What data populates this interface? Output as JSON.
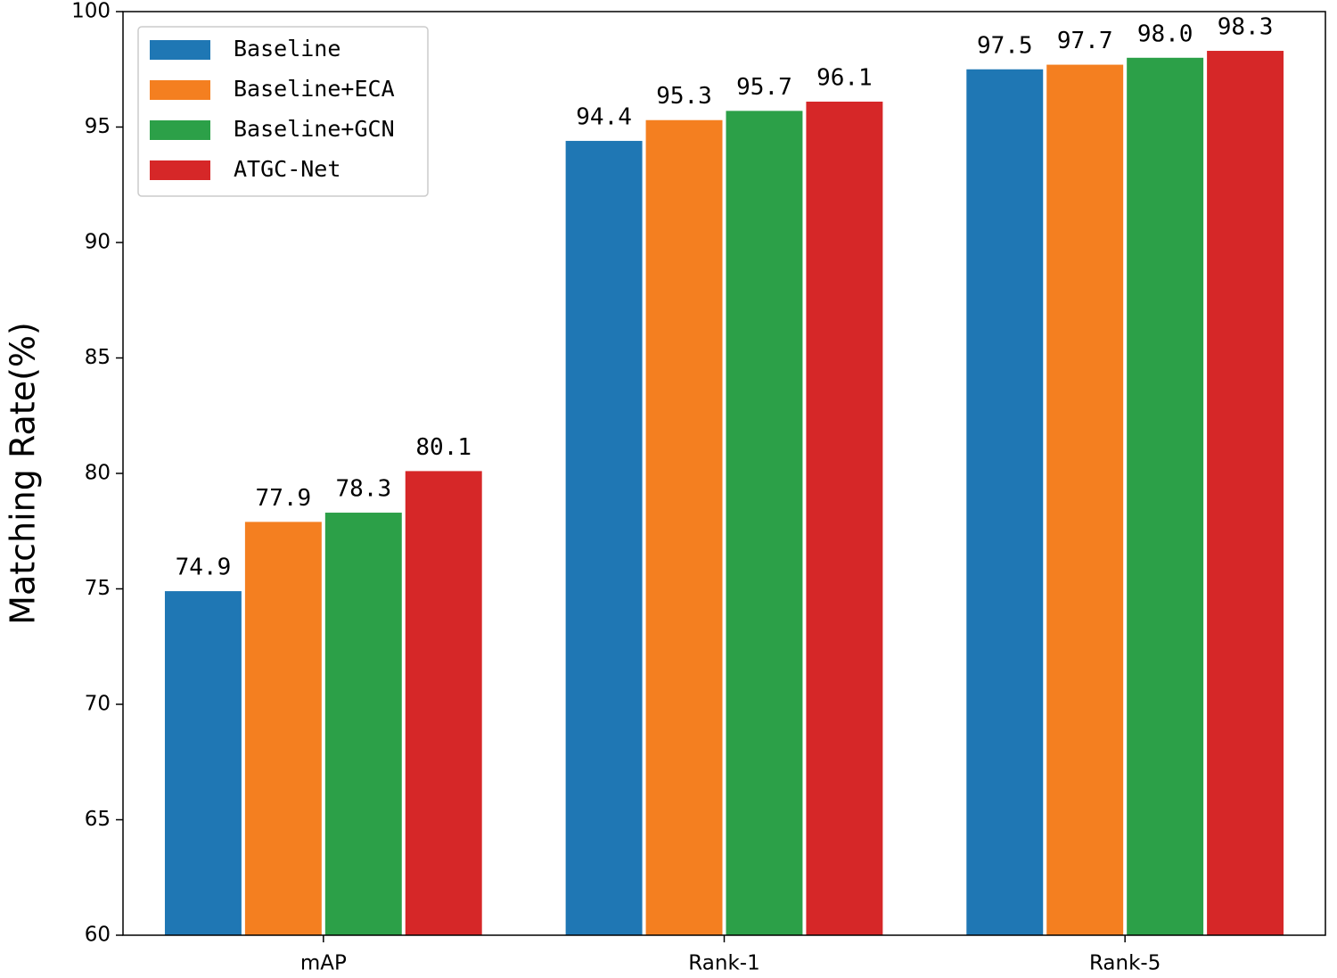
{
  "chart_data": {
    "type": "bar",
    "ylabel": "Matching Rate(%)",
    "categories": [
      "mAP",
      "Rank-1",
      "Rank-5"
    ],
    "series": [
      {
        "name": "Baseline",
        "color": "#1f77b4",
        "values": [
          74.9,
          94.4,
          97.5
        ]
      },
      {
        "name": "Baseline+ECA",
        "color": "#f47f20",
        "values": [
          77.9,
          95.3,
          97.7
        ]
      },
      {
        "name": "Baseline+GCN",
        "color": "#2ca048",
        "values": [
          78.3,
          95.7,
          98
        ],
        "value_labels": [
          "78.3",
          "95.7",
          "98.0"
        ]
      },
      {
        "name": "ATGC-Net",
        "color": "#d62728",
        "values": [
          80.1,
          96.1,
          98.3
        ]
      }
    ],
    "ylim": [
      60,
      100
    ],
    "yticks": [
      60,
      65,
      70,
      75,
      80,
      85,
      90,
      95,
      100
    ],
    "legend": "upper left"
  }
}
